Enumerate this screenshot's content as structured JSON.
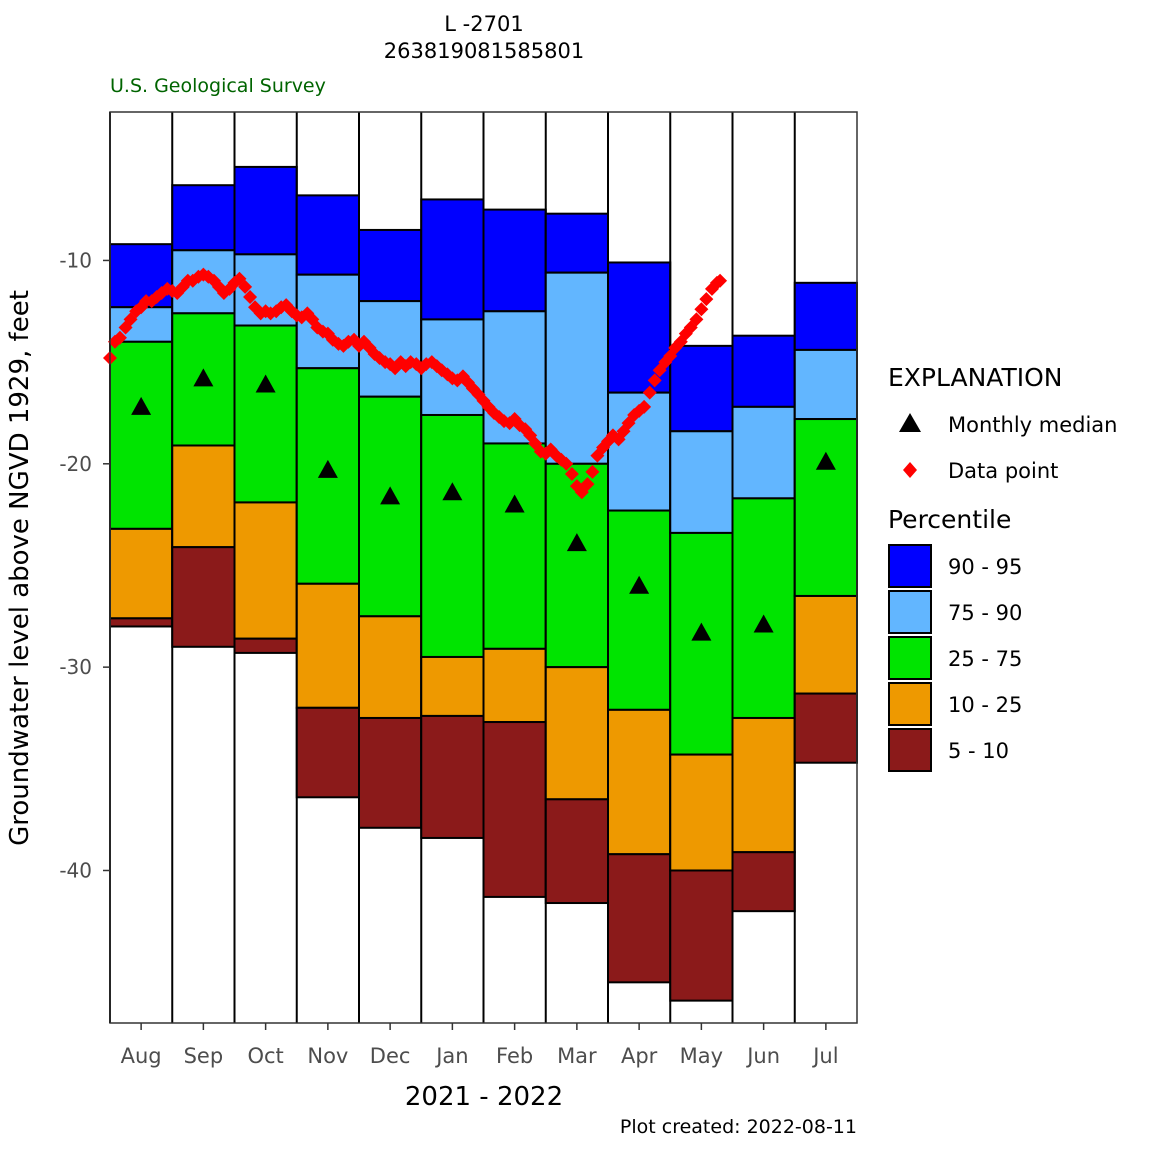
{
  "header": {
    "title_line1": "L -2701",
    "title_line2": "263819081585801",
    "agency": "U.S. Geological Survey",
    "agency_color": "#006400"
  },
  "footer": {
    "plot_created": "Plot created: 2022-08-11"
  },
  "chart_data": {
    "type": "bar",
    "subtype": "percentile-stacked-bar-with-line",
    "title": "L -2701",
    "subtitle": "263819081585801",
    "xlabel": "2021 - 2022",
    "ylabel": "Groundwater level above NGVD 1929, feet",
    "ylim": [
      -47.5,
      -2.7
    ],
    "yticks": [
      -10,
      -20,
      -30,
      -40
    ],
    "ytick_labels": [
      "-10",
      "-20",
      "-30",
      "-40"
    ],
    "categories": [
      "Aug",
      "Sep",
      "Oct",
      "Nov",
      "Dec",
      "Jan",
      "Feb",
      "Mar",
      "Apr",
      "May",
      "Jun",
      "Jul"
    ],
    "percentile_bounds": {
      "p5": [
        -28.0,
        -29.0,
        -29.3,
        -36.4,
        -37.9,
        -38.4,
        -41.3,
        -41.6,
        -45.5,
        -46.4,
        -42.0,
        -34.7
      ],
      "p10": [
        -27.6,
        -24.1,
        -28.6,
        -32.0,
        -32.5,
        -32.4,
        -32.7,
        -36.5,
        -39.2,
        -40.0,
        -39.1,
        -31.3
      ],
      "p25": [
        -23.2,
        -19.1,
        -21.9,
        -25.9,
        -27.5,
        -29.5,
        -29.1,
        -30.0,
        -32.1,
        -34.3,
        -32.5,
        -26.5
      ],
      "p75": [
        -14.0,
        -12.6,
        -13.2,
        -15.3,
        -16.7,
        -17.6,
        -19.0,
        -20.0,
        -22.3,
        -23.4,
        -21.7,
        -17.8
      ],
      "p90": [
        -12.3,
        -9.5,
        -9.7,
        -10.7,
        -12.0,
        -12.9,
        -12.5,
        -10.6,
        -16.5,
        -18.4,
        -17.2,
        -14.4
      ],
      "p95": [
        -9.2,
        -6.3,
        -5.4,
        -6.8,
        -8.5,
        -7.0,
        -7.5,
        -7.7,
        -10.1,
        -14.2,
        -13.7,
        -11.1
      ]
    },
    "monthly_median": [
      -17.2,
      -15.8,
      -16.1,
      -20.3,
      -21.6,
      -21.4,
      -22.0,
      -23.9,
      -26.0,
      -28.3,
      -27.9,
      -19.9
    ],
    "data_points": [
      {
        "x": 0.0,
        "y": -14.8
      },
      {
        "x": 0.08,
        "y": -14.0
      },
      {
        "x": 0.16,
        "y": -13.8
      },
      {
        "x": 0.25,
        "y": -13.3
      },
      {
        "x": 0.33,
        "y": -12.9
      },
      {
        "x": 0.42,
        "y": -12.5
      },
      {
        "x": 0.5,
        "y": -12.3
      },
      {
        "x": 0.58,
        "y": -12.0
      },
      {
        "x": 0.67,
        "y": -12.0
      },
      {
        "x": 0.75,
        "y": -11.8
      },
      {
        "x": 0.83,
        "y": -11.6
      },
      {
        "x": 0.92,
        "y": -11.4
      },
      {
        "x": 1.0,
        "y": -11.5
      },
      {
        "x": 1.08,
        "y": -11.6
      },
      {
        "x": 1.17,
        "y": -11.3
      },
      {
        "x": 1.25,
        "y": -11.0
      },
      {
        "x": 1.33,
        "y": -11.0
      },
      {
        "x": 1.42,
        "y": -10.8
      },
      {
        "x": 1.5,
        "y": -10.7
      },
      {
        "x": 1.58,
        "y": -10.8
      },
      {
        "x": 1.67,
        "y": -11.0
      },
      {
        "x": 1.75,
        "y": -11.3
      },
      {
        "x": 1.83,
        "y": -11.6
      },
      {
        "x": 1.92,
        "y": -11.4
      },
      {
        "x": 2.0,
        "y": -11.1
      },
      {
        "x": 2.08,
        "y": -10.9
      },
      {
        "x": 2.17,
        "y": -11.3
      },
      {
        "x": 2.25,
        "y": -11.8
      },
      {
        "x": 2.33,
        "y": -12.3
      },
      {
        "x": 2.42,
        "y": -12.6
      },
      {
        "x": 2.5,
        "y": -12.5
      },
      {
        "x": 2.58,
        "y": -12.6
      },
      {
        "x": 2.67,
        "y": -12.5
      },
      {
        "x": 2.75,
        "y": -12.3
      },
      {
        "x": 2.83,
        "y": -12.2
      },
      {
        "x": 2.92,
        "y": -12.5
      },
      {
        "x": 3.0,
        "y": -12.7
      },
      {
        "x": 3.08,
        "y": -12.8
      },
      {
        "x": 3.17,
        "y": -12.6
      },
      {
        "x": 3.25,
        "y": -12.9
      },
      {
        "x": 3.33,
        "y": -13.3
      },
      {
        "x": 3.42,
        "y": -13.5
      },
      {
        "x": 3.5,
        "y": -13.6
      },
      {
        "x": 3.58,
        "y": -13.9
      },
      {
        "x": 3.67,
        "y": -14.1
      },
      {
        "x": 3.75,
        "y": -14.2
      },
      {
        "x": 3.83,
        "y": -14.0
      },
      {
        "x": 3.92,
        "y": -13.9
      },
      {
        "x": 4.0,
        "y": -14.2
      },
      {
        "x": 4.08,
        "y": -14.0
      },
      {
        "x": 4.17,
        "y": -14.3
      },
      {
        "x": 4.25,
        "y": -14.6
      },
      {
        "x": 4.33,
        "y": -14.8
      },
      {
        "x": 4.42,
        "y": -15.0
      },
      {
        "x": 4.5,
        "y": -15.1
      },
      {
        "x": 4.58,
        "y": -15.3
      },
      {
        "x": 4.67,
        "y": -15.0
      },
      {
        "x": 4.75,
        "y": -15.2
      },
      {
        "x": 4.83,
        "y": -15.0
      },
      {
        "x": 4.92,
        "y": -15.1
      },
      {
        "x": 5.0,
        "y": -15.3
      },
      {
        "x": 5.08,
        "y": -15.1
      },
      {
        "x": 5.17,
        "y": -15.0
      },
      {
        "x": 5.25,
        "y": -15.2
      },
      {
        "x": 5.33,
        "y": -15.4
      },
      {
        "x": 5.42,
        "y": -15.6
      },
      {
        "x": 5.5,
        "y": -15.8
      },
      {
        "x": 5.58,
        "y": -15.9
      },
      {
        "x": 5.67,
        "y": -15.7
      },
      {
        "x": 5.75,
        "y": -16.0
      },
      {
        "x": 5.83,
        "y": -16.3
      },
      {
        "x": 5.92,
        "y": -16.6
      },
      {
        "x": 6.0,
        "y": -16.9
      },
      {
        "x": 6.08,
        "y": -17.2
      },
      {
        "x": 6.17,
        "y": -17.5
      },
      {
        "x": 6.25,
        "y": -17.7
      },
      {
        "x": 6.33,
        "y": -17.9
      },
      {
        "x": 6.42,
        "y": -18.0
      },
      {
        "x": 6.5,
        "y": -17.8
      },
      {
        "x": 6.58,
        "y": -18.1
      },
      {
        "x": 6.67,
        "y": -18.3
      },
      {
        "x": 6.75,
        "y": -18.6
      },
      {
        "x": 6.83,
        "y": -19.0
      },
      {
        "x": 6.92,
        "y": -19.4
      },
      {
        "x": 7.0,
        "y": -19.5
      },
      {
        "x": 7.08,
        "y": -19.3
      },
      {
        "x": 7.17,
        "y": -19.6
      },
      {
        "x": 7.25,
        "y": -19.8
      },
      {
        "x": 7.33,
        "y": -20.0
      },
      {
        "x": 7.42,
        "y": -20.5
      },
      {
        "x": 7.5,
        "y": -21.1
      },
      {
        "x": 7.58,
        "y": -21.4
      },
      {
        "x": 7.67,
        "y": -21.0
      },
      {
        "x": 7.75,
        "y": -20.4
      },
      {
        "x": 7.83,
        "y": -19.6
      },
      {
        "x": 7.92,
        "y": -19.2
      },
      {
        "x": 8.0,
        "y": -18.9
      },
      {
        "x": 8.08,
        "y": -18.6
      },
      {
        "x": 8.17,
        "y": -18.8
      },
      {
        "x": 8.25,
        "y": -18.4
      },
      {
        "x": 8.33,
        "y": -18.0
      },
      {
        "x": 8.42,
        "y": -17.6
      },
      {
        "x": 8.5,
        "y": -17.4
      },
      {
        "x": 8.58,
        "y": -17.2
      },
      {
        "x": 8.67,
        "y": -16.5
      },
      {
        "x": 8.75,
        "y": -15.9
      },
      {
        "x": 8.83,
        "y": -15.4
      },
      {
        "x": 8.92,
        "y": -15.0
      },
      {
        "x": 9.0,
        "y": -14.7
      },
      {
        "x": 9.08,
        "y": -14.3
      },
      {
        "x": 9.17,
        "y": -14.0
      },
      {
        "x": 9.25,
        "y": -13.6
      },
      {
        "x": 9.33,
        "y": -13.3
      },
      {
        "x": 9.42,
        "y": -12.9
      },
      {
        "x": 9.5,
        "y": -12.4
      },
      {
        "x": 9.58,
        "y": -11.9
      },
      {
        "x": 9.67,
        "y": -11.4
      },
      {
        "x": 9.75,
        "y": -11.1
      },
      {
        "x": 9.8,
        "y": -11.0
      }
    ],
    "legend": {
      "placement": "right",
      "title": "EXPLANATION",
      "median_label": "Monthly median",
      "data_point_label": "Data point",
      "percentile_title": "Percentile",
      "ranges": [
        {
          "label": "90 - 95",
          "color": "#0000ff"
        },
        {
          "label": "75 - 90",
          "color": "#62b6ff"
        },
        {
          "label": "25 - 75",
          "color": "#00e400"
        },
        {
          "label": "10 - 25",
          "color": "#ee9900"
        },
        {
          "label": "5 - 10",
          "color": "#8b1a1a"
        }
      ]
    },
    "colors": {
      "p90_95": "#0000ff",
      "p75_90": "#62b6ff",
      "p25_75": "#00e400",
      "p10_25": "#ee9900",
      "p5_10": "#8b1a1a",
      "median": "#000000",
      "data_point": "#ff0000"
    }
  }
}
